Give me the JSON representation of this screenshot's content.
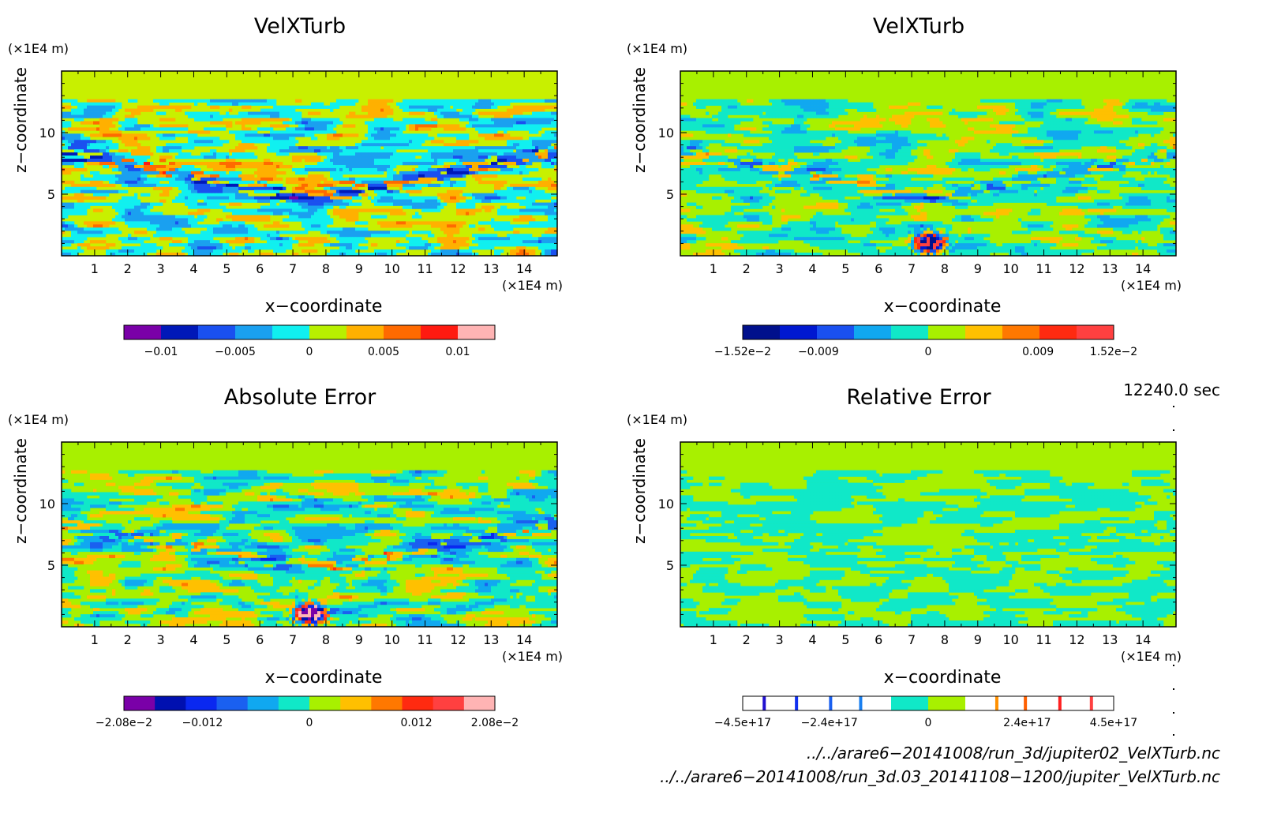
{
  "chart_data": [
    {
      "type": "heatmap",
      "title": "VelXTurb",
      "xlabel": "x−coordinate",
      "ylabel": "z−coordinate",
      "x_unit": "(×1E4 m)",
      "z_unit": "(×1E4 m)",
      "x_ticks": [
        "1",
        "2",
        "3",
        "4",
        "5",
        "6",
        "7",
        "8",
        "9",
        "10",
        "11",
        "12",
        "13",
        "14"
      ],
      "y_ticks": [
        "5",
        "10"
      ],
      "xlim": [
        0,
        15
      ],
      "ylim": [
        0,
        15
      ],
      "colorbar": {
        "colors": [
          "#7a00a8",
          "#0018b8",
          "#1a50f0",
          "#1aa0f0",
          "#10f0f0",
          "#b8f000",
          "#ffb000",
          "#ff6a00",
          "#ff1a10",
          "#ffb4b4"
        ],
        "tick_labels": [
          "−0.01",
          "−0.005",
          "0",
          "0.005",
          "0.01"
        ],
        "tick_values": [
          -0.01,
          -0.005,
          0,
          0.005,
          0.01
        ],
        "range": [
          -0.0125,
          0.0125
        ]
      }
    },
    {
      "type": "heatmap",
      "title": "VelXTurb",
      "xlabel": "x−coordinate",
      "ylabel": "z−coordinate",
      "x_unit": "(×1E4 m)",
      "z_unit": "(×1E4 m)",
      "x_ticks": [
        "1",
        "2",
        "3",
        "4",
        "5",
        "6",
        "7",
        "8",
        "9",
        "10",
        "11",
        "12",
        "13",
        "14"
      ],
      "y_ticks": [
        "5",
        "10"
      ],
      "xlim": [
        0,
        15
      ],
      "ylim": [
        0,
        15
      ],
      "colorbar": {
        "colors": [
          "#00108c",
          "#0018d0",
          "#1a50f0",
          "#10a8f0",
          "#10e8c8",
          "#a8f000",
          "#ffc000",
          "#ff7800",
          "#ff2a10",
          "#ff4040"
        ],
        "tick_labels": [
          "−1.52e−2",
          "−0.009",
          "0",
          "0.009",
          "1.52e−2"
        ],
        "tick_values": [
          -0.0152,
          -0.009,
          0,
          0.009,
          0.0152
        ],
        "range": [
          -0.0152,
          0.0152
        ]
      }
    },
    {
      "type": "heatmap",
      "title": "Absolute Error",
      "xlabel": "x−coordinate",
      "ylabel": "z−coordinate",
      "x_unit": "(×1E4 m)",
      "z_unit": "(×1E4 m)",
      "x_ticks": [
        "1",
        "2",
        "3",
        "4",
        "5",
        "6",
        "7",
        "8",
        "9",
        "10",
        "11",
        "12",
        "13",
        "14"
      ],
      "y_ticks": [
        "5",
        "10"
      ],
      "xlim": [
        0,
        15
      ],
      "ylim": [
        0,
        15
      ],
      "colorbar": {
        "colors": [
          "#7a00a8",
          "#0010b0",
          "#0a28f0",
          "#1a60f0",
          "#10a8f0",
          "#10e8c8",
          "#a8f000",
          "#ffc000",
          "#ff7800",
          "#ff2a10",
          "#ff4040",
          "#ffb4b4"
        ],
        "tick_labels": [
          "−2.08e−2",
          "−0.012",
          "0",
          "0.012",
          "2.08e−2"
        ],
        "tick_values": [
          -0.0208,
          -0.012,
          0,
          0.012,
          0.0208
        ],
        "range": [
          -0.0208,
          0.0208
        ]
      }
    },
    {
      "type": "heatmap",
      "title": "Relative Error",
      "xlabel": "x−coordinate",
      "ylabel": "z−coordinate",
      "x_unit": "(×1E4 m)",
      "z_unit": "(×1E4 m)",
      "x_ticks": [
        "1",
        "2",
        "3",
        "4",
        "5",
        "6",
        "7",
        "8",
        "9",
        "10",
        "11",
        "12",
        "13",
        "14"
      ],
      "y_ticks": [
        "5",
        "10"
      ],
      "xlim": [
        0,
        15
      ],
      "ylim": [
        0,
        15
      ],
      "colorbar": {
        "colors": [
          "#ffffff",
          "#ffffff",
          "#ffffff",
          "#ffffff",
          "#10e8c8",
          "#a8f000",
          "#ffffff",
          "#ffffff",
          "#ffffff",
          "#ffffff"
        ],
        "tick_labels": [
          "−4.5e+17",
          "−2.4e+17",
          "0",
          "2.4e+17",
          "4.5e+17"
        ],
        "tick_values": [
          -4.5e+17,
          -2.4e+17,
          0,
          2.4e+17,
          4.5e+17
        ],
        "range": [
          -4.5e+17,
          4.5e+17
        ]
      }
    }
  ],
  "time_label": "12240.0 sec",
  "files": [
    "../../arare6−20141008/run_3d/jupiter02_VelXTurb.nc",
    "../../arare6−20141008/run_3d.03_20141108−1200/jupiter_VelXTurb.nc"
  ]
}
